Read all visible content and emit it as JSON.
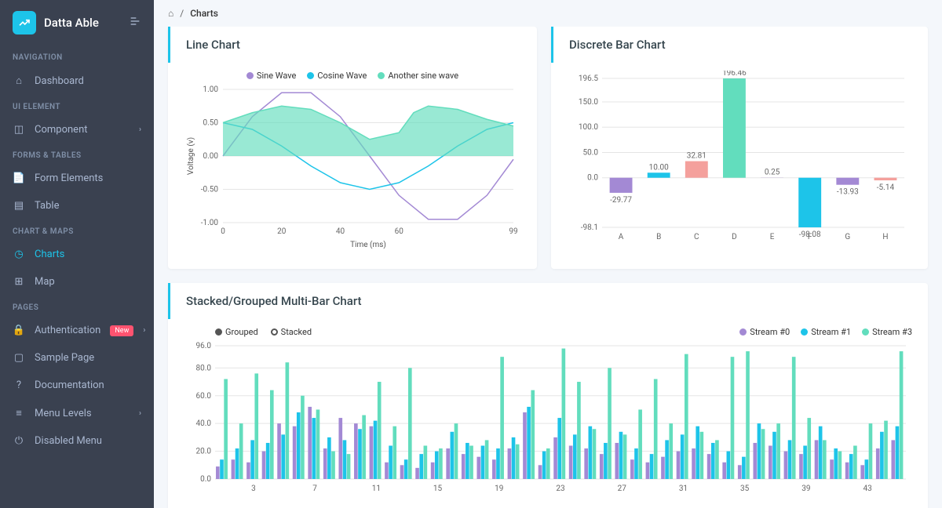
{
  "brand": {
    "name": "Datta Able"
  },
  "breadcrumb": {
    "home_icon": "⌂",
    "page": "Charts"
  },
  "nav": {
    "sections": [
      {
        "header": "NAVIGATION",
        "items": [
          {
            "icon": "⌂",
            "label": "Dashboard",
            "active": false,
            "key": "dashboard"
          }
        ]
      },
      {
        "header": "UI ELEMENT",
        "items": [
          {
            "icon": "◫",
            "label": "Component",
            "chev": true,
            "key": "component"
          }
        ]
      },
      {
        "header": "FORMS & TABLES",
        "items": [
          {
            "icon": "📄",
            "label": "Form Elements",
            "key": "form-elements"
          },
          {
            "icon": "▤",
            "label": "Table",
            "key": "table"
          }
        ]
      },
      {
        "header": "CHART & MAPS",
        "items": [
          {
            "icon": "◷",
            "label": "Charts",
            "active": true,
            "key": "charts"
          },
          {
            "icon": "⊞",
            "label": "Map",
            "key": "map"
          }
        ]
      },
      {
        "header": "PAGES",
        "items": [
          {
            "icon": "🔒",
            "label": "Authentication",
            "badge": "New",
            "chev": true,
            "key": "auth"
          },
          {
            "icon": "▢",
            "label": "Sample Page",
            "key": "sample"
          },
          {
            "icon": "?",
            "label": "Documentation",
            "key": "docs"
          },
          {
            "icon": "≡",
            "label": "Menu Levels",
            "chev": true,
            "key": "menu-levels"
          },
          {
            "icon": "⏻",
            "label": "Disabled Menu",
            "key": "disabled"
          }
        ]
      }
    ]
  },
  "lineChart": {
    "title": "Line Chart",
    "type": "line",
    "xlabel": "Time (ms)",
    "ylabel": "Voltage (v)",
    "xlim": [
      0,
      99
    ],
    "ylim": [
      -1.0,
      1.0
    ],
    "xticks": [
      0,
      20,
      40,
      60,
      99
    ],
    "yticks": [
      -1.0,
      -0.5,
      0.0,
      0.5,
      1.0
    ],
    "background_color": "#ffffff",
    "grid_color": "#e5e5e5",
    "series": [
      {
        "name": "Sine Wave",
        "color": "#a389d4",
        "type": "line",
        "data": [
          [
            0,
            0.0
          ],
          [
            10,
            0.59
          ],
          [
            20,
            0.95
          ],
          [
            30,
            0.95
          ],
          [
            40,
            0.59
          ],
          [
            50,
            0.0
          ],
          [
            60,
            -0.59
          ],
          [
            70,
            -0.95
          ],
          [
            80,
            -0.95
          ],
          [
            90,
            -0.59
          ],
          [
            99,
            -0.05
          ]
        ]
      },
      {
        "name": "Cosine Wave",
        "color": "#1dc4e9",
        "type": "line",
        "data": [
          [
            0,
            0.5
          ],
          [
            10,
            0.4
          ],
          [
            20,
            0.15
          ],
          [
            30,
            -0.15
          ],
          [
            40,
            -0.4
          ],
          [
            50,
            -0.5
          ],
          [
            60,
            -0.4
          ],
          [
            70,
            -0.15
          ],
          [
            80,
            0.15
          ],
          [
            90,
            0.4
          ],
          [
            99,
            0.5
          ]
        ]
      },
      {
        "name": "Another sine wave",
        "color": "#62ddbd",
        "type": "area",
        "data": [
          [
            0,
            0.5
          ],
          [
            10,
            0.65
          ],
          [
            20,
            0.75
          ],
          [
            30,
            0.7
          ],
          [
            40,
            0.5
          ],
          [
            50,
            0.25
          ],
          [
            60,
            0.35
          ],
          [
            65,
            0.65
          ],
          [
            70,
            0.75
          ],
          [
            80,
            0.7
          ],
          [
            90,
            0.55
          ],
          [
            99,
            0.45
          ]
        ]
      }
    ]
  },
  "barChart": {
    "title": "Discrete Bar Chart",
    "type": "bar",
    "categories": [
      "A",
      "B",
      "C",
      "D",
      "E",
      "F",
      "G",
      "H"
    ],
    "values": [
      -29.77,
      10.0,
      32.81,
      196.46,
      0.25,
      -98.08,
      -13.93,
      -5.14
    ],
    "colors": [
      "#a389d4",
      "#1dc4e9",
      "#f4a09c",
      "#62ddbd",
      "#a389d4",
      "#1dc4e9",
      "#a389d4",
      "#f4a09c"
    ],
    "yticks": [
      -98.1,
      0.0,
      50.0,
      100.0,
      150.0,
      196.5
    ],
    "grid_color": "#e5e5e5",
    "background_color": "#ffffff",
    "label_fontsize": 10,
    "bar_width": 0.6
  },
  "multiBar": {
    "title": "Stacked/Grouped Multi-Bar Chart",
    "type": "grouped-bar",
    "mode_labels": [
      "Grouped",
      "Stacked"
    ],
    "mode": "Grouped",
    "ylim": [
      0,
      96
    ],
    "yticks": [
      0.0,
      20.0,
      40.0,
      60.0,
      80.0,
      96.0
    ],
    "xticks": [
      3,
      7,
      11,
      15,
      19,
      23,
      27,
      31,
      35,
      39,
      43
    ],
    "grid_color": "#e5e5e5",
    "series_meta": [
      {
        "name": "Stream #0",
        "color": "#a389d4"
      },
      {
        "name": "Stream #1",
        "color": "#1dc4e9"
      },
      {
        "name": "Stream #3",
        "color": "#62ddbd"
      }
    ],
    "x_count": 45,
    "streams": [
      [
        9,
        14,
        12,
        20,
        40,
        38,
        52,
        22,
        44,
        40,
        38,
        12,
        10,
        8,
        12,
        22,
        18,
        16,
        14,
        22,
        48,
        10,
        30,
        24,
        22,
        18,
        26,
        14,
        12,
        16,
        20,
        22,
        18,
        12,
        10,
        26,
        24,
        20,
        18,
        28,
        14,
        12,
        10,
        22,
        28
      ],
      [
        14,
        22,
        28,
        26,
        32,
        48,
        44,
        30,
        28,
        36,
        42,
        24,
        14,
        18,
        20,
        34,
        26,
        24,
        22,
        30,
        52,
        20,
        44,
        32,
        38,
        26,
        34,
        22,
        18,
        28,
        32,
        38,
        26,
        20,
        16,
        40,
        34,
        28,
        24,
        38,
        22,
        18,
        14,
        34,
        38
      ],
      [
        72,
        40,
        76,
        64,
        84,
        60,
        50,
        20,
        18,
        46,
        70,
        38,
        80,
        24,
        22,
        40,
        24,
        28,
        88,
        25,
        64,
        22,
        94,
        70,
        36,
        80,
        32,
        50,
        72,
        40,
        90,
        34,
        28,
        88,
        92,
        36,
        40,
        88,
        44,
        28,
        20,
        24,
        40,
        42,
        92
      ]
    ]
  }
}
